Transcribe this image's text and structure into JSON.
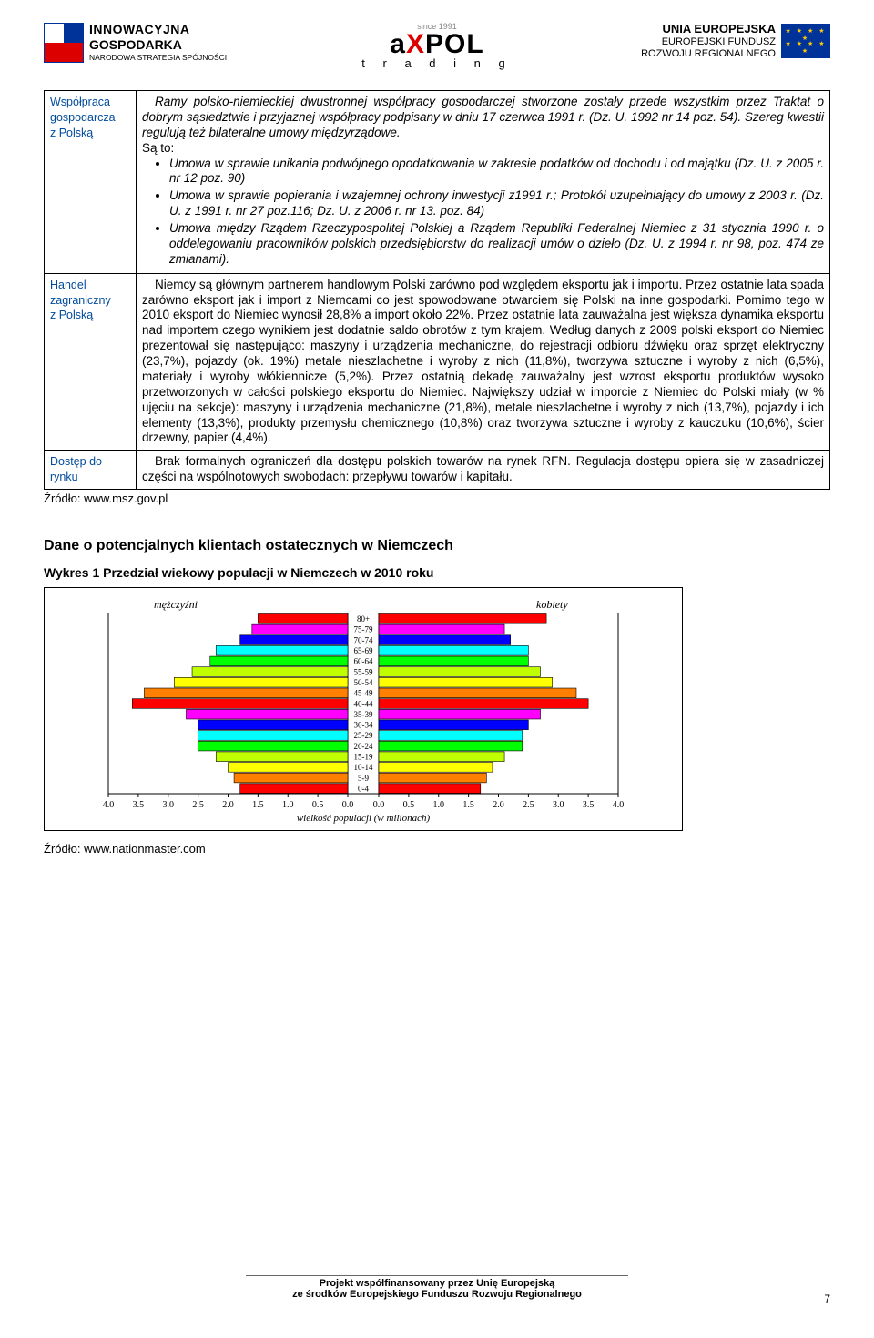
{
  "logos": {
    "left_bold": "INNOWACYJNA",
    "left_line2": "GOSPODARKA",
    "left_small": "NARODOWA STRATEGIA SPÓJNOŚCI",
    "center_since": "since 1991",
    "center_brand_a": "a",
    "center_brand_x": "X",
    "center_brand_pol": "POL",
    "center_trading": "t r a d i n g",
    "right_l1": "UNIA EUROPEJSKA",
    "right_l2": "EUROPEJSKI FUNDUSZ",
    "right_l3": "ROZWOJU REGIONALNEGO"
  },
  "row1": {
    "label_l1": "Współpraca",
    "label_l2": "gospodarcza",
    "label_l3": "z Polską",
    "p1": "Ramy polsko-niemieckiej dwustronnej współpracy gospodarczej stworzone zostały przede wszystkim przez Traktat o dobrym sąsiedztwie i przyjaznej współpracy podpisany w dniu 17 czerwca 1991 r. (Dz. U. 1992 nr 14 poz. 54). Szereg kwestii regulują też bilateralne umowy międzyrządowe.",
    "p2": "Są to:",
    "b1": "Umowa w sprawie unikania podwójnego opodatkowania w zakresie podatków od dochodu i od majątku (Dz. U. z 2005 r. nr 12 poz. 90)",
    "b2": "Umowa w sprawie popierania i wzajemnej ochrony inwestycji z1991 r.; Protokół uzupełniający do umowy z 2003 r. (Dz. U. z 1991 r. nr 27 poz.116; Dz. U. z 2006 r. nr 13. poz. 84)",
    "b3": "Umowa między Rządem Rzeczypospolitej Polskiej a Rządem Republiki Federalnej Niemiec z 31 stycznia 1990 r. o oddelegowaniu pracowników polskich przedsiębiorstw do realizacji umów o dzieło (Dz. U. z 1994 r. nr 98, poz. 474 ze zmianami)."
  },
  "row2": {
    "label_l1": "Handel",
    "label_l2": "zagraniczny",
    "label_l3": "z Polską",
    "text": "Niemcy są głównym partnerem handlowym Polski zarówno pod względem eksportu jak i importu. Przez ostatnie lata spada zarówno eksport jak i import z Niemcami co jest spowodowane otwarciem się Polski na inne gospodarki. Pomimo tego w 2010 eksport do Niemiec wynosił 28,8% a import około 22%. Przez ostatnie lata zauważalna jest większa dynamika eksportu nad importem czego wynikiem jest dodatnie saldo obrotów z tym krajem. Według danych z 2009 polski eksport do Niemiec prezentował się następująco: maszyny i urządzenia mechaniczne, do rejestracji odbioru dźwięku oraz sprzęt elektryczny (23,7%), pojazdy (ok. 19%) metale nieszlachetne i wyroby z nich (11,8%), tworzywa sztuczne i wyroby z nich (6,5%), materiały i wyroby włókiennicze (5,2%). Przez ostatnią dekadę zauważalny jest wzrost eksportu produktów wysoko przetworzonych w całości polskiego eksportu do Niemiec. Największy udział w imporcie z Niemiec do Polski miały (w % ujęciu na sekcje): maszyny i urządzenia mechaniczne (21,8%), metale nieszlachetne i wyroby z nich (13,7%), pojazdy i ich elementy (13,3%), produkty przemysłu chemicznego (10,8%) oraz tworzywa sztuczne i wyroby z kauczuku (10,6%), ścier drzewny, papier (4,4%)."
  },
  "row3": {
    "label_l1": "Dostęp do",
    "label_l2": "rynku",
    "text": "Brak formalnych ograniczeń dla dostępu polskich towarów na rynek RFN. Regulacja dostępu opiera się w zasadniczej części na wspólnotowych swobodach: przepływu towarów i kapitału."
  },
  "source1": "Źródło: www.msz.gov.pl",
  "section_heading": "Dane o potencjalnych klientach ostatecznych w Niemczech",
  "chart_caption": "Wykres 1 Przedział wiekowy populacji w Niemczech w 2010 roku",
  "chart": {
    "label_left": "mężczyźni",
    "label_right": "kobiety",
    "y_labels": [
      "80+",
      "75-79",
      "70-74",
      "65-69",
      "60-64",
      "55-59",
      "50-54",
      "45-49",
      "40-44",
      "35-39",
      "30-34",
      "25-29",
      "20-24",
      "15-19",
      "10-14",
      "5-9",
      "0-4"
    ],
    "bar_colors": [
      "#ff0000",
      "#ff00ff",
      "#0000ff",
      "#00ffff",
      "#00ff00",
      "#c0ff00",
      "#ffff00",
      "#ff7f00",
      "#ff0000",
      "#ff00ff",
      "#0000ff",
      "#00ffff",
      "#00ff00",
      "#c0ff00",
      "#ffff00",
      "#ff7f00",
      "#ff0000"
    ],
    "male": [
      1.5,
      1.6,
      1.8,
      2.2,
      2.3,
      2.6,
      2.9,
      3.4,
      3.6,
      2.7,
      2.5,
      2.5,
      2.5,
      2.2,
      2.0,
      1.9,
      1.8
    ],
    "female": [
      2.8,
      2.1,
      2.2,
      2.5,
      2.5,
      2.7,
      2.9,
      3.3,
      3.5,
      2.7,
      2.5,
      2.4,
      2.4,
      2.1,
      1.9,
      1.8,
      1.7
    ],
    "x_max": 4.0,
    "x_ticks": [
      "4.0",
      "3.5",
      "3.0",
      "2.5",
      "2.0",
      "1.5",
      "1.0",
      "0.5",
      "0.0",
      "0.0",
      "0.5",
      "1.0",
      "1.5",
      "2.0",
      "2.5",
      "3.0",
      "3.5",
      "4.0"
    ],
    "x_label": "wielkość populacji (w milionach)"
  },
  "source2": "Źródło: www.nationmaster.com",
  "footer_l1": "Projekt współfinansowany przez Unię Europejską",
  "footer_l2": "ze środków Europejskiego Funduszu Rozwoju Regionalnego",
  "page_num": "7"
}
